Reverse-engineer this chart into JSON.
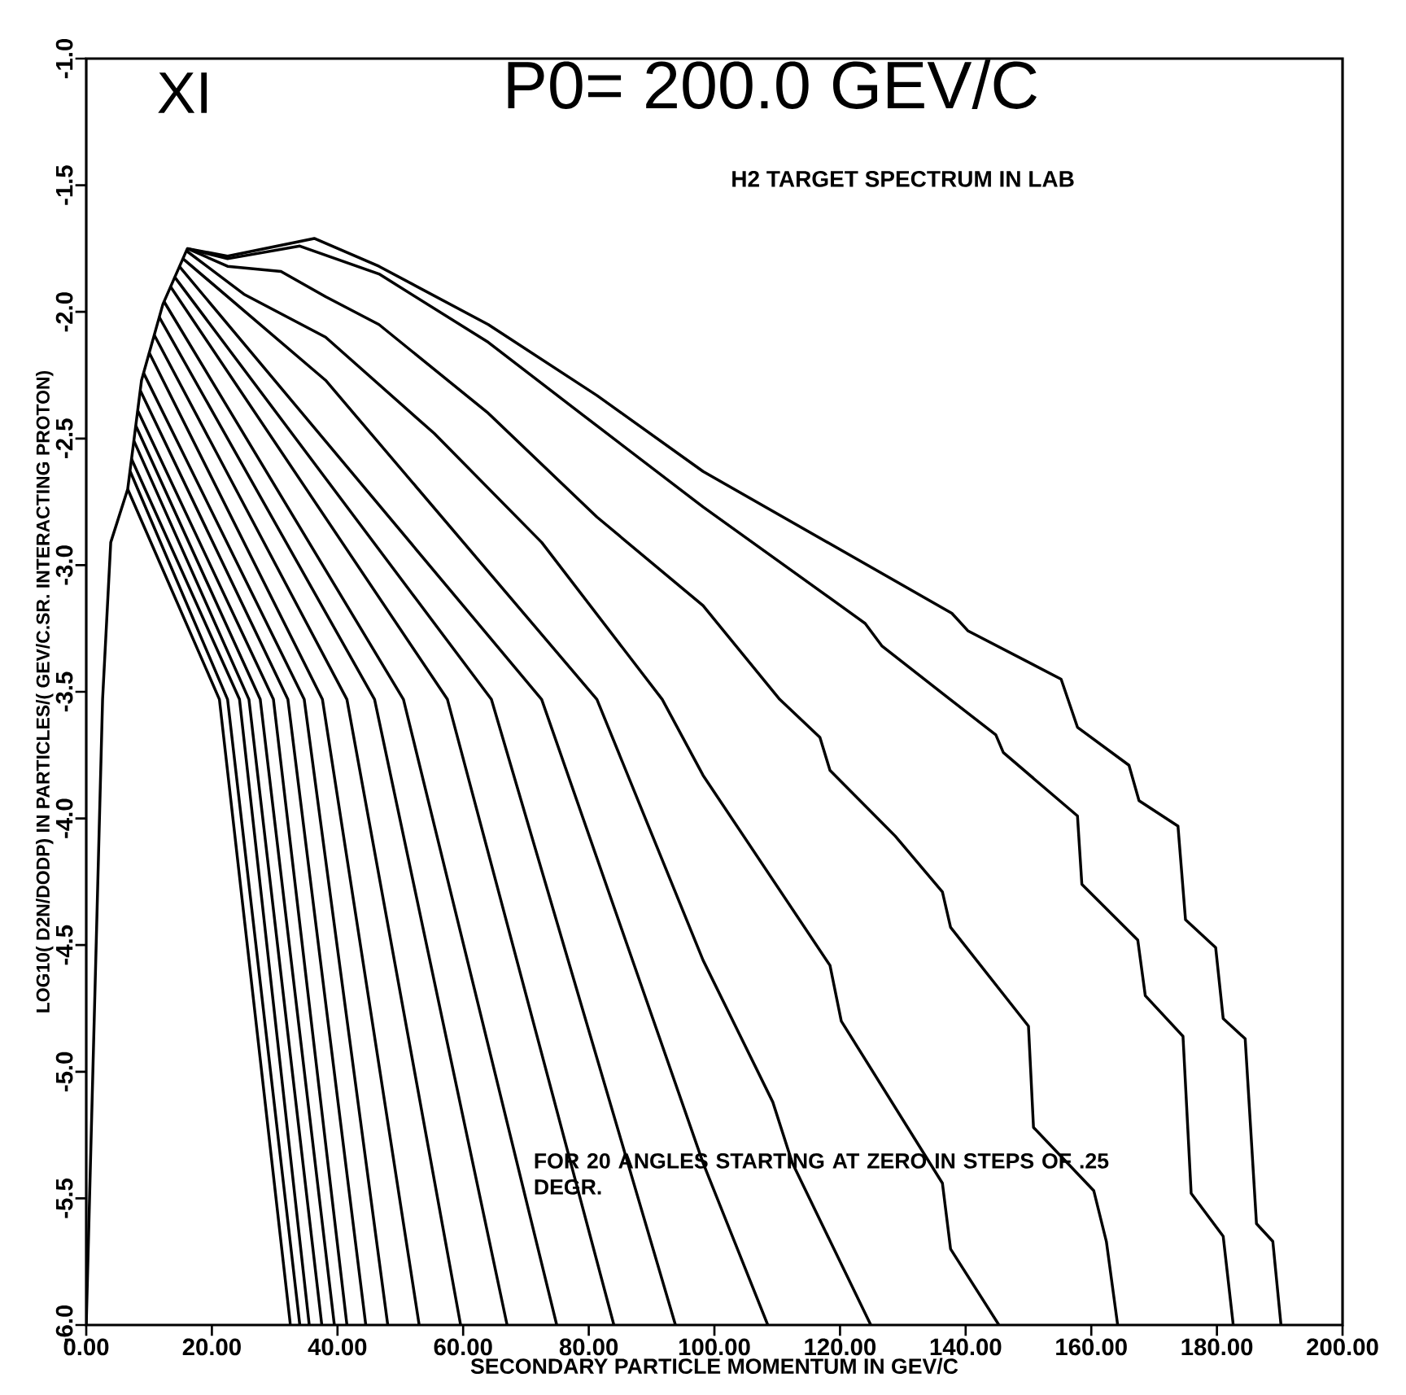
{
  "chart_data": {
    "type": "line",
    "title": "P0= 200.0 GEV/C",
    "subtitle": "H2  TARGET SPECTRUM IN LAB",
    "xlabel": "SECONDARY PARTICLE MOMENTUM IN GEV/C",
    "ylabel": "LOG10( D2N/DODP)  IN PARTICLES/( GEV/C.SR. INTERACTING PROTON)",
    "annotations": [
      "XI",
      "FOR 20 ANGLES STARTING AT ZERO IN STEPS OF .25 DEGR."
    ],
    "xlim": [
      0,
      200
    ],
    "ylim": [
      -6,
      -1
    ],
    "xticks": [
      {
        "value": 0,
        "label": "0.00"
      },
      {
        "value": 20,
        "label": "20.00"
      },
      {
        "value": 40,
        "label": "40.00"
      },
      {
        "value": 60,
        "label": "60.00"
      },
      {
        "value": 80,
        "label": "80.00"
      },
      {
        "value": 100,
        "label": "100.00"
      },
      {
        "value": 120,
        "label": "120.00"
      },
      {
        "value": 140,
        "label": "140.00"
      },
      {
        "value": 160,
        "label": "160.00"
      },
      {
        "value": 180,
        "label": "180.00"
      },
      {
        "value": 200,
        "label": "200.00"
      }
    ],
    "yticks": [
      {
        "value": -6,
        "label": "-6.0"
      },
      {
        "value": -5.5,
        "label": "-5.5"
      },
      {
        "value": -5,
        "label": "-5.0"
      },
      {
        "value": -4.5,
        "label": "-4.5"
      },
      {
        "value": -4,
        "label": "-4.0"
      },
      {
        "value": -3.5,
        "label": "-3.5"
      },
      {
        "value": -3,
        "label": "-3.0"
      },
      {
        "value": -2.5,
        "label": "-2.5"
      },
      {
        "value": -2,
        "label": "-2.0"
      },
      {
        "value": -1.5,
        "label": "-1.5"
      },
      {
        "value": -1,
        "label": "-1.0"
      }
    ],
    "grid": false,
    "marker": "none",
    "line_style": "solid",
    "series": [
      {
        "color": "#000000",
        "x": [
          0,
          2.6,
          3.9,
          6.6,
          8.8,
          12.2,
          16.1,
          22.5,
          36.3,
          46.6,
          64,
          81.3,
          98.2,
          137.8,
          140.4,
          155.2,
          157.8,
          166,
          167.6,
          173.8,
          175,
          179.8,
          181,
          184.5,
          186.3,
          188.9,
          190.2
        ],
        "values": [
          -6,
          -3.53,
          -2.91,
          -2.7,
          -2.27,
          -1.97,
          -1.75,
          -1.78,
          -1.71,
          -1.82,
          -2.05,
          -2.33,
          -2.63,
          -3.19,
          -3.26,
          -3.45,
          -3.64,
          -3.79,
          -3.93,
          -4.03,
          -4.4,
          -4.51,
          -4.79,
          -4.87,
          -5.6,
          -5.67,
          -6
        ]
      },
      {
        "color": "#000000",
        "x": [
          16.1,
          22.5,
          34,
          46.6,
          64,
          81.3,
          98.2,
          124,
          126.7,
          137,
          144.8,
          146,
          157.8,
          158.5,
          167.4,
          168.6,
          174.6,
          175.9,
          181,
          182.6
        ],
        "values": [
          -1.75,
          -1.79,
          -1.74,
          -1.85,
          -2.12,
          -2.45,
          -2.77,
          -3.23,
          -3.32,
          -3.52,
          -3.67,
          -3.74,
          -3.99,
          -4.26,
          -4.48,
          -4.7,
          -4.86,
          -5.48,
          -5.65,
          -6
        ]
      },
      {
        "color": "#000000",
        "x": [
          16.1,
          22.5,
          31,
          38.1,
          46.6,
          64,
          81.3,
          98.2,
          110.4,
          116.8,
          118.4,
          128.8,
          136.3,
          137.6,
          150,
          150.8,
          160.4,
          162.4,
          164.2
        ],
        "values": [
          -1.75,
          -1.82,
          -1.84,
          -1.94,
          -2.05,
          -2.4,
          -2.81,
          -3.16,
          -3.53,
          -3.68,
          -3.81,
          -4.07,
          -4.29,
          -4.43,
          -4.82,
          -5.22,
          -5.47,
          -5.67,
          -6
        ]
      },
      {
        "color": "#000000",
        "x": [
          16,
          25.1,
          38.1,
          55.4,
          72.5,
          91.7,
          98.2,
          118.4,
          120.2,
          136.3,
          137.6,
          145.3
        ],
        "values": [
          -1.76,
          -1.93,
          -2.1,
          -2.48,
          -2.91,
          -3.53,
          -3.83,
          -4.58,
          -4.8,
          -5.44,
          -5.7,
          -6
        ]
      },
      {
        "color": "#000000",
        "x": [
          15.4,
          38.1,
          81.3,
          98.2,
          109.3,
          112.4,
          124.9
        ],
        "values": [
          -1.79,
          -2.27,
          -3.53,
          -4.56,
          -5.12,
          -5.36,
          -6
        ]
      },
      {
        "color": "#000000",
        "x": [
          14.8,
          72.5,
          98.2,
          108.5
        ],
        "values": [
          -1.82,
          -3.53,
          -5.36,
          -6
        ]
      },
      {
        "color": "#000000",
        "x": [
          14,
          64.5,
          93.8
        ],
        "values": [
          -1.86,
          -3.53,
          -6
        ]
      },
      {
        "color": "#000000",
        "x": [
          13.4,
          57.5,
          84
        ],
        "values": [
          -1.9,
          -3.53,
          -6
        ]
      },
      {
        "color": "#000000",
        "x": [
          12.4,
          50.5,
          74.9
        ],
        "values": [
          -1.96,
          -3.53,
          -6
        ]
      },
      {
        "color": "#000000",
        "x": [
          11.6,
          45.9,
          67
        ],
        "values": [
          -2.02,
          -3.53,
          -6
        ]
      },
      {
        "color": "#000000",
        "x": [
          10.8,
          41.5,
          59.6
        ],
        "values": [
          -2.09,
          -3.53,
          -6
        ]
      },
      {
        "color": "#000000",
        "x": [
          10,
          37.6,
          53
        ],
        "values": [
          -2.16,
          -3.53,
          -6
        ]
      },
      {
        "color": "#000000",
        "x": [
          9.1,
          34.7,
          48
        ],
        "values": [
          -2.24,
          -3.53,
          -6
        ]
      },
      {
        "color": "#000000",
        "x": [
          8.6,
          32.1,
          44.5
        ],
        "values": [
          -2.31,
          -3.53,
          -6
        ]
      },
      {
        "color": "#000000",
        "x": [
          8.2,
          29.8,
          41.5
        ],
        "values": [
          -2.39,
          -3.53,
          -6
        ]
      },
      {
        "color": "#000000",
        "x": [
          7.9,
          27.7,
          39.5
        ],
        "values": [
          -2.45,
          -3.53,
          -6
        ]
      },
      {
        "color": "#000000",
        "x": [
          7.6,
          25.9,
          37.5
        ],
        "values": [
          -2.51,
          -3.53,
          -6
        ]
      },
      {
        "color": "#000000",
        "x": [
          7.2,
          24.4,
          35.5
        ],
        "values": [
          -2.58,
          -3.53,
          -6
        ]
      },
      {
        "color": "#000000",
        "x": [
          7,
          22.5,
          34
        ],
        "values": [
          -2.63,
          -3.53,
          -6
        ]
      },
      {
        "color": "#000000",
        "x": [
          6.6,
          21.2,
          32.5
        ],
        "values": [
          -2.7,
          -3.53,
          -6
        ]
      }
    ]
  }
}
